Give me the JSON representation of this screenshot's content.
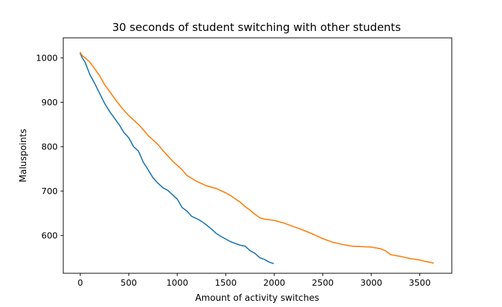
{
  "chart_data": {
    "type": "line",
    "title": "30 seconds of student switching with other students",
    "xlabel": "Amount of activity switches",
    "ylabel": "Maluspoints",
    "xlim": [
      -175,
      3830
    ],
    "ylim": [
      515,
      1045
    ],
    "xticks": [
      0,
      500,
      1000,
      1500,
      2000,
      2500,
      3000,
      3500
    ],
    "yticks": [
      600,
      700,
      800,
      900,
      1000
    ],
    "grid": false,
    "legend": "none",
    "colors": [
      "#1f77b4",
      "#ff7f0e"
    ],
    "series": [
      {
        "color": "#1f77b4",
        "x": [
          0,
          20,
          50,
          100,
          150,
          200,
          250,
          300,
          350,
          400,
          450,
          500,
          550,
          600,
          650,
          700,
          750,
          800,
          850,
          900,
          950,
          1000,
          1050,
          1100,
          1150,
          1200,
          1250,
          1300,
          1350,
          1400,
          1450,
          1500,
          1550,
          1600,
          1650,
          1700,
          1750,
          1800,
          1850,
          1900,
          1950,
          1990
        ],
        "y": [
          1010,
          1000,
          990,
          962,
          942,
          920,
          898,
          880,
          865,
          850,
          832,
          820,
          800,
          790,
          765,
          748,
          730,
          718,
          708,
          702,
          692,
          682,
          663,
          655,
          643,
          638,
          632,
          624,
          615,
          605,
          598,
          592,
          586,
          582,
          578,
          576,
          566,
          560,
          550,
          546,
          540,
          537
        ]
      },
      {
        "color": "#ff7f0e",
        "x": [
          0,
          20,
          60,
          100,
          150,
          200,
          250,
          300,
          350,
          400,
          450,
          500,
          550,
          600,
          650,
          700,
          750,
          800,
          850,
          900,
          950,
          1000,
          1050,
          1100,
          1200,
          1300,
          1400,
          1500,
          1550,
          1600,
          1650,
          1700,
          1750,
          1800,
          1850,
          1900,
          2000,
          2100,
          2200,
          2300,
          2400,
          2500,
          2600,
          2700,
          2800,
          2900,
          3000,
          3100,
          3150,
          3200,
          3300,
          3400,
          3500,
          3550,
          3600,
          3640
        ],
        "y": [
          1012,
          1005,
          998,
          990,
          975,
          960,
          940,
          925,
          910,
          895,
          882,
          870,
          860,
          850,
          838,
          825,
          815,
          805,
          792,
          780,
          768,
          758,
          748,
          735,
          722,
          712,
          706,
          696,
          690,
          682,
          675,
          665,
          657,
          648,
          640,
          637,
          634,
          628,
          620,
          612,
          603,
          593,
          585,
          580,
          576,
          575,
          574,
          570,
          565,
          557,
          553,
          548,
          545,
          542,
          540,
          538
        ]
      }
    ]
  }
}
